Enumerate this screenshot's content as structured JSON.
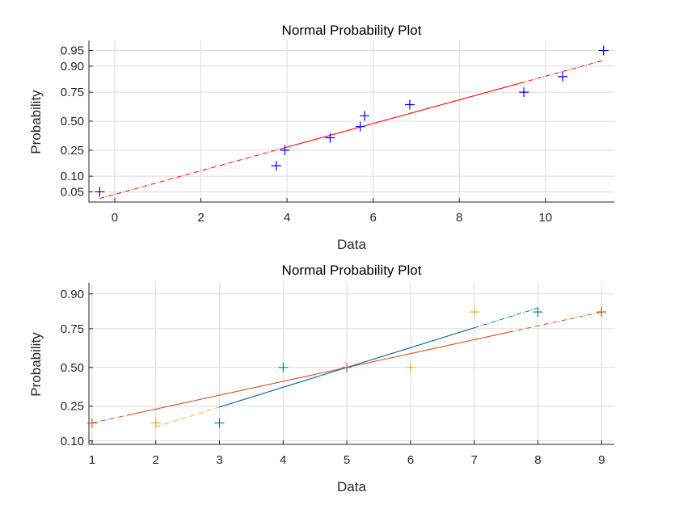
{
  "chart_data": [
    {
      "type": "scatter",
      "title": "Normal Probability Plot",
      "xlabel": "Data",
      "ylabel": "Probability",
      "xlim": [
        -0.6,
        11.6
      ],
      "ylim": [
        0.03,
        0.97
      ],
      "xticks": [
        0,
        2,
        4,
        6,
        8,
        10
      ],
      "xtick_labels": [
        "0",
        "2",
        "4",
        "6",
        "8",
        "10"
      ],
      "yticks": [
        0.05,
        0.1,
        0.25,
        0.5,
        0.75,
        0.9,
        0.95
      ],
      "ytick_labels": [
        "0.05",
        "0.10",
        "0.25",
        "0.50",
        "0.75",
        "0.90",
        "0.95"
      ],
      "grid": true,
      "series": [
        {
          "color": "#0000ff",
          "points": [
            {
              "x": -0.35,
              "y": 0.05
            },
            {
              "x": 3.75,
              "y": 0.15
            },
            {
              "x": 3.95,
              "y": 0.25
            },
            {
              "x": 5.0,
              "y": 0.35
            },
            {
              "x": 5.7,
              "y": 0.45
            },
            {
              "x": 5.8,
              "y": 0.55
            },
            {
              "x": 6.85,
              "y": 0.65
            },
            {
              "x": 9.5,
              "y": 0.75
            },
            {
              "x": 10.4,
              "y": 0.85
            },
            {
              "x": 11.35,
              "y": 0.95
            }
          ],
          "fit": {
            "color": "#ff0000",
            "x_start": -0.35,
            "x_end": 11.35,
            "solid_from": 3.95,
            "solid_to": 9.5
          }
        }
      ]
    },
    {
      "type": "scatter",
      "title": "Normal Probability Plot",
      "xlabel": "Data",
      "ylabel": "Probability",
      "xlim": [
        0.95,
        9.2
      ],
      "ylim": [
        0.09,
        0.93
      ],
      "xticks": [
        1,
        2,
        3,
        4,
        5,
        6,
        7,
        8,
        9
      ],
      "xtick_labels": [
        "1",
        "2",
        "3",
        "4",
        "5",
        "6",
        "7",
        "8",
        "9"
      ],
      "yticks": [
        0.1,
        0.25,
        0.5,
        0.75,
        0.9
      ],
      "ytick_labels": [
        "0.10",
        "0.25",
        "0.50",
        "0.75",
        "0.90"
      ],
      "grid": true,
      "series": [
        {
          "color": "#d95319",
          "points": [
            {
              "x": 1,
              "y": 0.1667
            },
            {
              "x": 5,
              "y": 0.5
            },
            {
              "x": 9,
              "y": 0.8333
            }
          ],
          "fit": {
            "color": "#d95319",
            "x_start": 1,
            "x_end": 9,
            "solid_from": 1.6,
            "solid_to": 7.6
          }
        },
        {
          "color": "#edb120",
          "points": [
            {
              "x": 2,
              "y": 0.1667
            },
            {
              "x": 6,
              "y": 0.5
            },
            {
              "x": 7,
              "y": 0.8333
            }
          ],
          "fit": {
            "color": "#edb120",
            "x_start": 2,
            "x_end": 7,
            "solid_from": 3.0,
            "solid_to": 6.8
          }
        },
        {
          "color": "#008b8b",
          "points": [
            {
              "x": 3,
              "y": 0.1667
            },
            {
              "x": 4,
              "y": 0.5
            },
            {
              "x": 8,
              "y": 0.8333
            }
          ],
          "fit": {
            "color": "#0072bd",
            "x_start": 3,
            "x_end": 8,
            "solid_from": 3.0,
            "solid_to": 7.0
          }
        }
      ]
    }
  ]
}
